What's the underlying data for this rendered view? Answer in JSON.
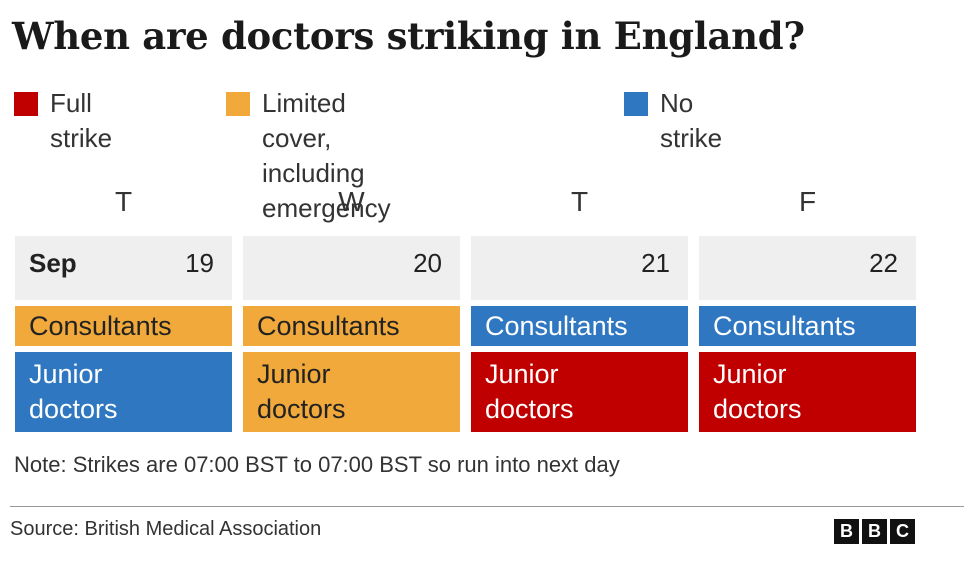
{
  "title": "When are doctors striking in England?",
  "legend": [
    {
      "label": "Full strike",
      "color": "#c00000"
    },
    {
      "label": "Limited cover, including\nemergency care",
      "color": "#f0a93a"
    },
    {
      "label": "No strike",
      "color": "#2f77c0"
    }
  ],
  "colors": {
    "full": "#c00000",
    "limited": "#f0a93a",
    "none": "#2f77c0",
    "date_bg": "#efefef"
  },
  "chart_data": {
    "type": "table",
    "title": "When are doctors striking in England?",
    "month": "Sep",
    "days": [
      {
        "letter": "T",
        "date": "19"
      },
      {
        "letter": "W",
        "date": "20"
      },
      {
        "letter": "T",
        "date": "21"
      },
      {
        "letter": "F",
        "date": "22"
      }
    ],
    "rows": [
      {
        "label": "Consultants",
        "status": [
          "Limited cover, including emergency care",
          "Limited cover, including emergency care",
          "No strike",
          "No strike"
        ]
      },
      {
        "label": "Junior\ndoctors",
        "status": [
          "No strike",
          "Limited cover, including emergency care",
          "Full strike",
          "Full strike"
        ]
      }
    ]
  },
  "note": "Note: Strikes are 07:00 BST to 07:00 BST so run into next day",
  "source": "Source: British Medical Association",
  "logo_letters": [
    "B",
    "B",
    "C"
  ]
}
